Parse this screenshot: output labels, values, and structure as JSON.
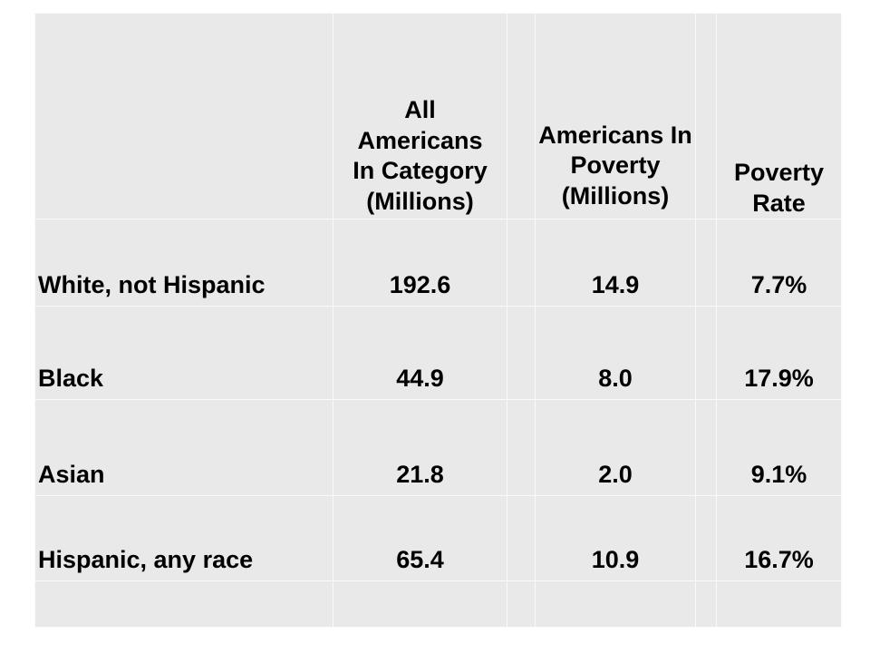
{
  "table": {
    "headers": {
      "category": "",
      "all_americans": "All Americans In Category (Millions)",
      "in_poverty": "Americans In Poverty (Millions)",
      "poverty_rate": "Poverty Rate"
    },
    "rows": [
      {
        "category": "White, not Hispanic",
        "all": "192.6",
        "poverty": "14.9",
        "rate": "7.7%"
      },
      {
        "category": "Black",
        "all": "44.9",
        "poverty": "8.0",
        "rate": "17.9%"
      },
      {
        "category": "Asian",
        "all": "21.8",
        "poverty": "2.0",
        "rate": "9.1%"
      },
      {
        "category": "Hispanic, any race",
        "all": "65.4",
        "poverty": "10.9",
        "rate": "16.7%"
      }
    ]
  },
  "colors": {
    "cell_background": "#e9e9e9",
    "grid_lines": "#fafafa",
    "text": "#000000"
  }
}
